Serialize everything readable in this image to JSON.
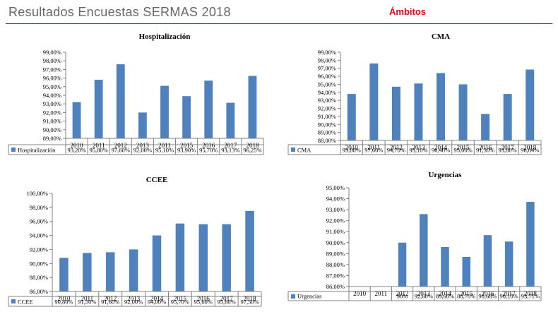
{
  "header": {
    "title": "Resultados Encuestas SERMAS 2018",
    "section": "Ámbitos"
  },
  "colors": {
    "bar": "#4f81bd",
    "accent": "#e30613"
  },
  "chart_data": [
    {
      "type": "bar",
      "title": "Hospitalización",
      "series_name": "Hospitalización",
      "categories": [
        "2010",
        "2011",
        "2012",
        "2013",
        "2011",
        "2015",
        "2016",
        "2017",
        "2018"
      ],
      "values": [
        93.2,
        95.8,
        97.6,
        92.0,
        95.1,
        93.9,
        95.7,
        93.13,
        96.25
      ],
      "value_labels": [
        "93,20%",
        "95,80%",
        "97,60%",
        "92,00%",
        "95,10%",
        "93,90%",
        "95,70%",
        "93,13%",
        "96,25%"
      ],
      "ylim": [
        89,
        99
      ],
      "ticks": [
        89,
        90,
        91,
        92,
        93,
        94,
        95,
        96,
        97,
        98,
        99
      ],
      "tick_labels": [
        "89,00%",
        "90,00%",
        "91,00%",
        "92,00%",
        "93,00%",
        "94,00%",
        "95,00%",
        "96,00%",
        "97,00%",
        "98,00%",
        "99,00%"
      ]
    },
    {
      "type": "bar",
      "title": "CMA",
      "series_name": "CMA",
      "categories": [
        "2010",
        "2011",
        "2012",
        "2013",
        "2014",
        "2015",
        "2016",
        "2017",
        "2018"
      ],
      "values": [
        93.8,
        97.6,
        94.7,
        95.1,
        96.4,
        95.0,
        91.3,
        93.8,
        96.84
      ],
      "value_labels": [
        "93,80%",
        "97,60%",
        "94,70%",
        "95,10%",
        "96,40%",
        "95,00%",
        "91,30%",
        "93,80%",
        "96,84%"
      ],
      "ylim": [
        88,
        99
      ],
      "ticks": [
        88,
        89,
        90,
        91,
        92,
        93,
        94,
        95,
        96,
        97,
        98,
        99
      ],
      "tick_labels": [
        "88,00%",
        "89,00%",
        "90,00%",
        "91,00%",
        "92,00%",
        "93,00%",
        "94,00%",
        "95,00%",
        "96,00%",
        "97,00%",
        "98,00%",
        "99,00%"
      ]
    },
    {
      "type": "bar",
      "title": "CCEE",
      "series_name": "CCEE",
      "categories": [
        "2010",
        "2011",
        "2012",
        "2013",
        "2014",
        "2015",
        "2016",
        "2017",
        "2018"
      ],
      "values": [
        90.8,
        91.5,
        91.6,
        92.0,
        94.0,
        95.7,
        95.6,
        95.6,
        97.5
      ],
      "value_labels": [
        "90,80%",
        "91,50%",
        "91,60%",
        "92,00%",
        "94,00%",
        "95,70%",
        "95,60%",
        "95,60%",
        "97,50%"
      ],
      "ylim": [
        86,
        100
      ],
      "ticks": [
        86,
        88,
        90,
        92,
        94,
        96,
        98,
        100
      ],
      "tick_labels": [
        "86,00%",
        "88,00%",
        "90,00%",
        "92,00%",
        "94,00%",
        "96,00%",
        "98,00%",
        "100,00%"
      ]
    },
    {
      "type": "bar",
      "title": "Urgencias",
      "series_name": "Urgencias",
      "categories": [
        "2010",
        "2011",
        "2012",
        "2013",
        "2014",
        "2015",
        "2016",
        "2017",
        "2018"
      ],
      "values": [
        null,
        null,
        90.0,
        92.6,
        89.6,
        88.7,
        90.68,
        90.1,
        93.71
      ],
      "value_labels": [
        "",
        "",
        "90%",
        "92,60%",
        "89,60%",
        "88,70%",
        "90,68%",
        "90,10%",
        "93,71%"
      ],
      "ylim": [
        86,
        95
      ],
      "ticks": [
        86,
        87,
        88,
        89,
        90,
        91,
        92,
        93,
        94,
        95
      ],
      "tick_labels": [
        "86,00%",
        "87,00%",
        "88,00%",
        "89,00%",
        "90,00%",
        "91,00%",
        "92,00%",
        "93,00%",
        "94,00%",
        "95,00%"
      ]
    }
  ]
}
